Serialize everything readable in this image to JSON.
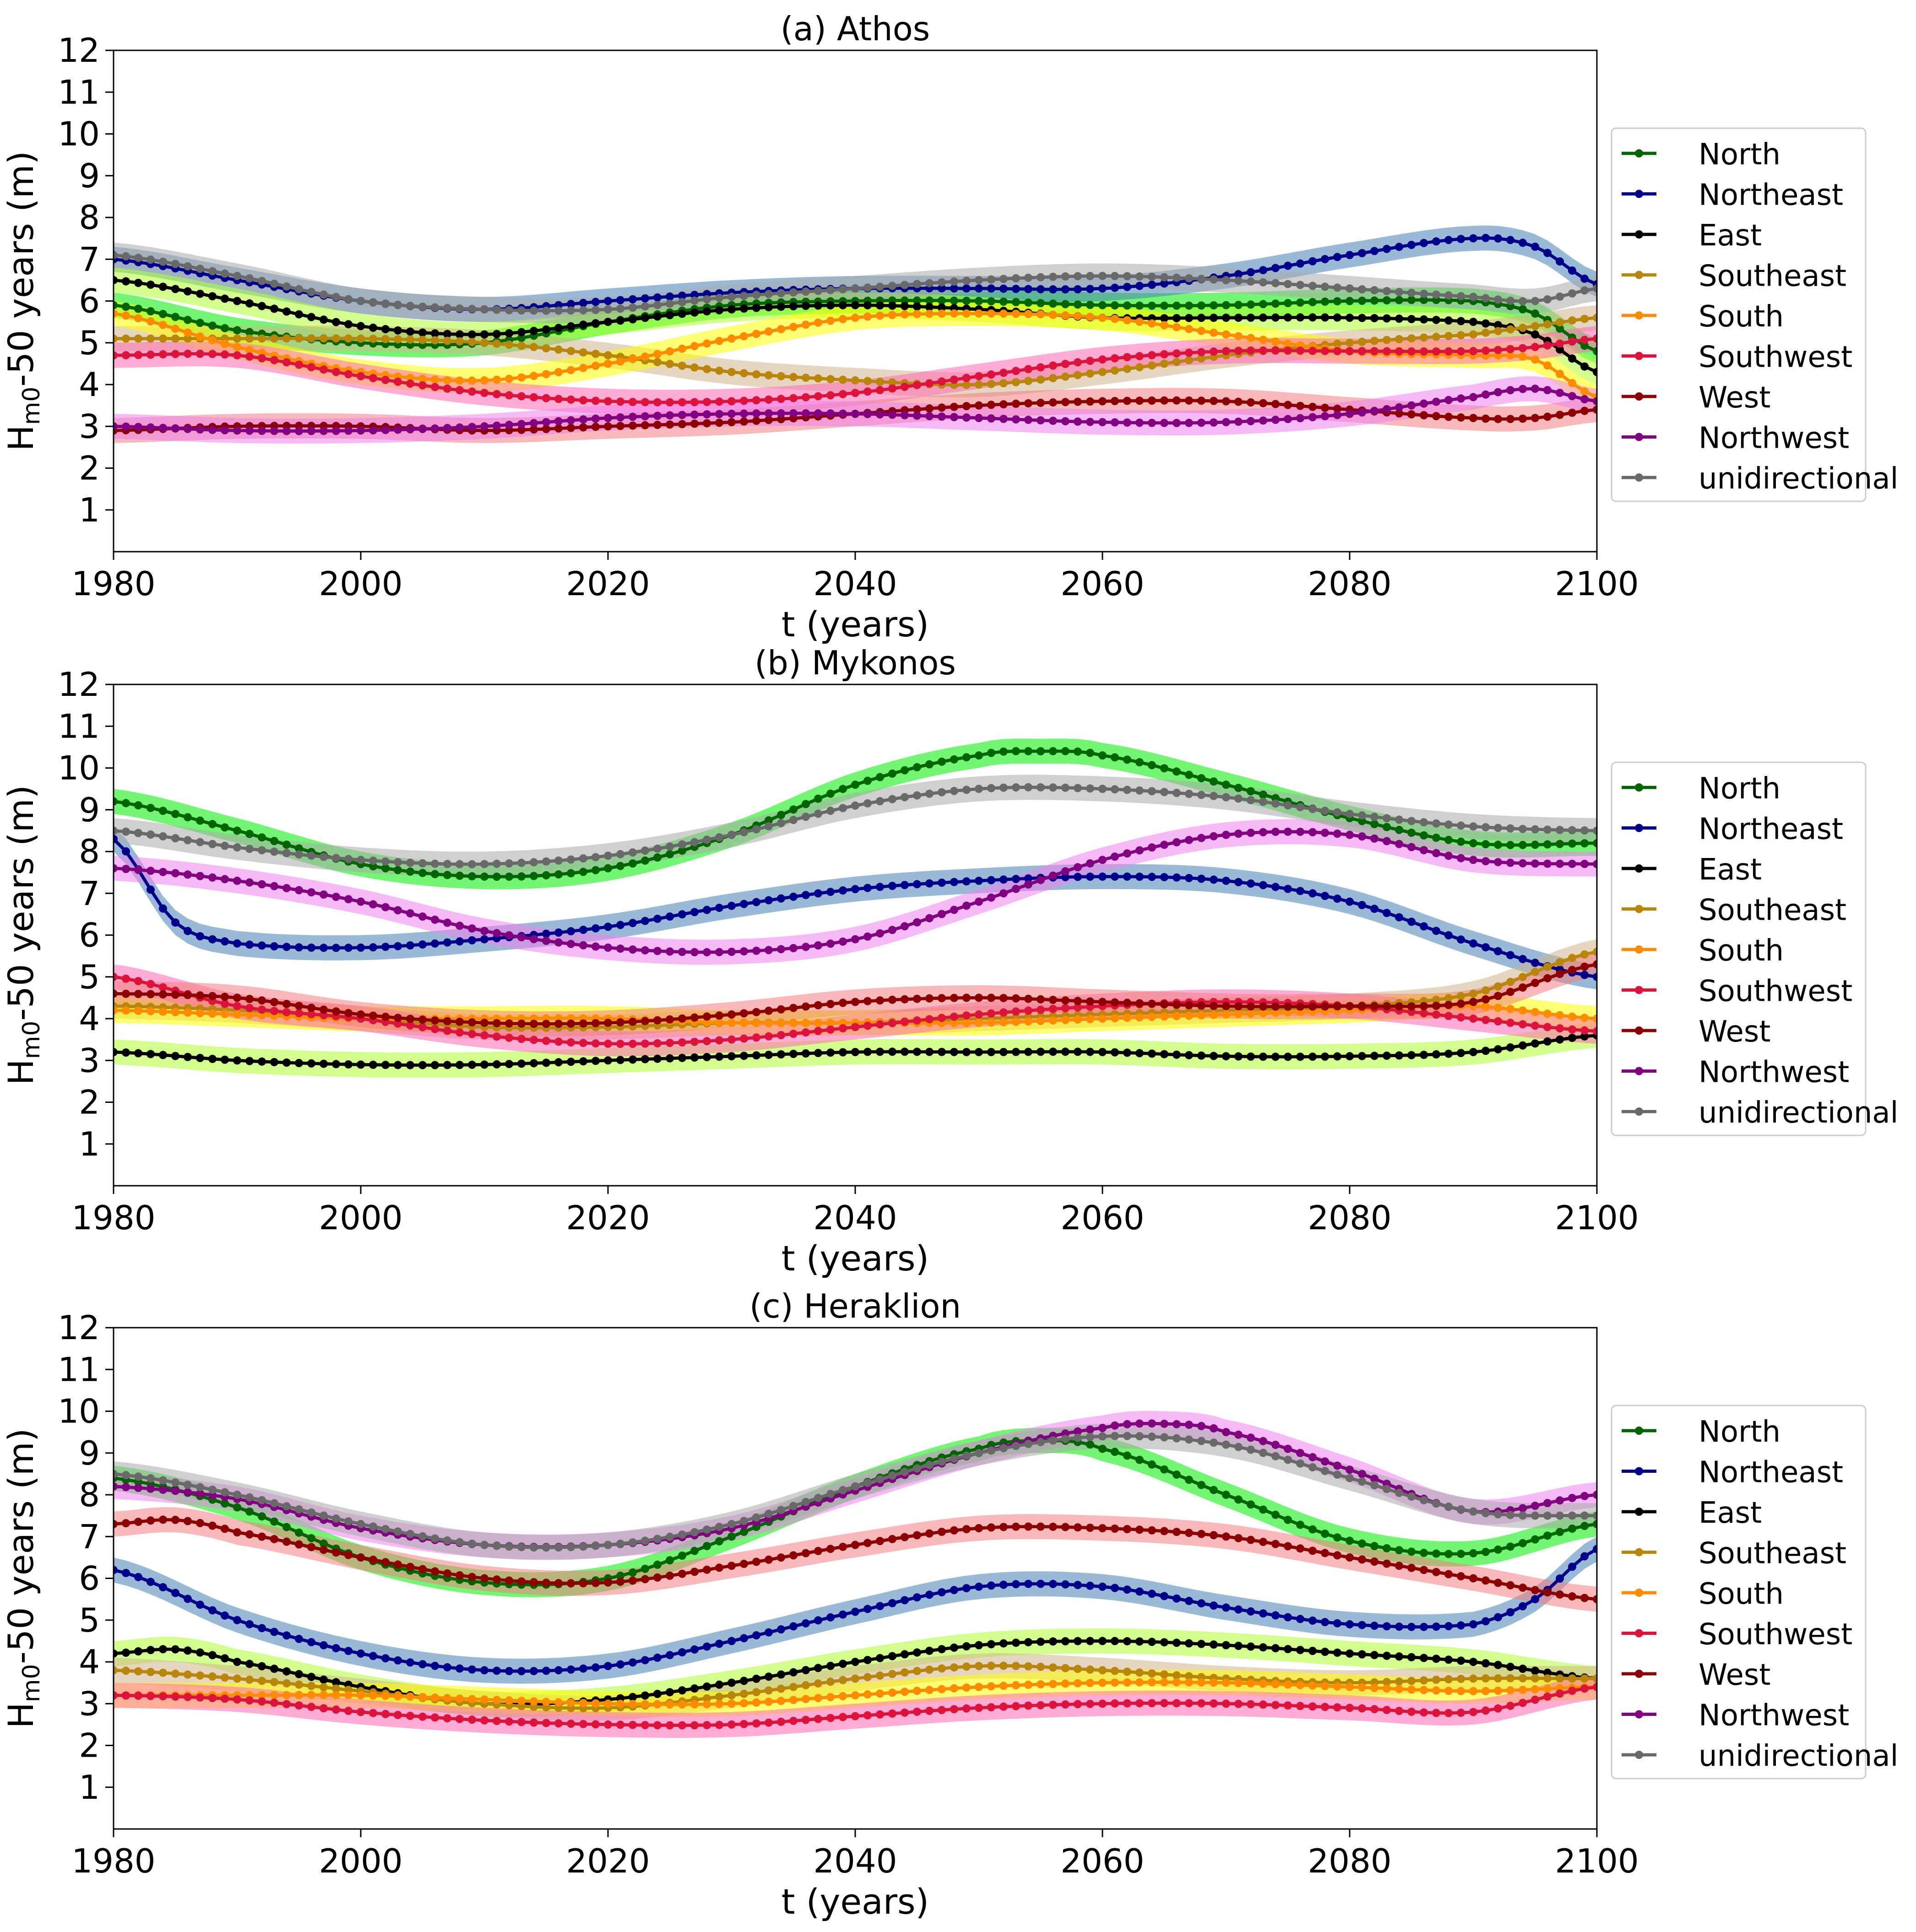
{
  "figure": {
    "description_free": true
  },
  "common": {
    "xlabel": "t (years)",
    "ylabel_main": "H",
    "ylabel_sub": "m0",
    "ylabel_rest": "-50 years (m)",
    "xlim": [
      1980,
      2100
    ],
    "ylim": [
      0,
      12
    ],
    "xticks": [
      1980,
      2000,
      2020,
      2040,
      2060,
      2080,
      2100
    ],
    "yticks": [
      1,
      2,
      3,
      4,
      5,
      6,
      7,
      8,
      9,
      10,
      11,
      12
    ],
    "legend_position": "right"
  },
  "colors": {
    "North": "#006400",
    "Northeast": "#00008b",
    "East": "#000000",
    "Southeast": "#b8860b",
    "South": "#ff8c00",
    "Southwest": "#dc143c",
    "West": "#8b0000",
    "Northwest": "#800080",
    "unidirectional": "#696969"
  },
  "band_colors": {
    "North": "#00ee00",
    "Northeast": "#4682b4",
    "East": "#adff2f",
    "Southeast": "#d2b48c",
    "South": "#ffff00",
    "Southwest": "#ff69b4",
    "West": "#f08080",
    "Northwest": "#ee82ee",
    "unidirectional": "#a9a9a9"
  },
  "chart_data": [
    {
      "type": "line",
      "title": "(a) Athos",
      "xlabel": "t (years)",
      "ylabel": "Hm0-50 years (m)",
      "xlim": [
        1980,
        2100
      ],
      "ylim": [
        0,
        12
      ],
      "band_halfwidth": 0.3,
      "legend": [
        "North",
        "Northeast",
        "East",
        "Southeast",
        "South",
        "Southwest",
        "West",
        "Northwest",
        "unidirectional"
      ],
      "series": [
        {
          "name": "North",
          "x": [
            1980,
            1990,
            2000,
            2010,
            2020,
            2030,
            2040,
            2050,
            2060,
            2070,
            2080,
            2090,
            2095,
            2100
          ],
          "values": [
            5.9,
            5.3,
            5.0,
            5.0,
            5.5,
            5.9,
            6.0,
            6.0,
            5.9,
            5.9,
            6.0,
            6.0,
            5.7,
            4.8
          ]
        },
        {
          "name": "Northeast",
          "x": [
            1980,
            1990,
            2000,
            2010,
            2020,
            2030,
            2040,
            2050,
            2060,
            2070,
            2080,
            2090,
            2095,
            2100
          ],
          "values": [
            7.0,
            6.5,
            6.0,
            5.8,
            6.0,
            6.2,
            6.3,
            6.3,
            6.3,
            6.6,
            7.1,
            7.5,
            7.3,
            6.4
          ]
        },
        {
          "name": "East",
          "x": [
            1980,
            1990,
            2000,
            2010,
            2020,
            2030,
            2040,
            2050,
            2060,
            2070,
            2080,
            2090,
            2095,
            2100
          ],
          "values": [
            6.5,
            6.0,
            5.4,
            5.2,
            5.5,
            5.8,
            5.9,
            5.8,
            5.6,
            5.6,
            5.6,
            5.5,
            5.2,
            4.3
          ]
        },
        {
          "name": "Southeast",
          "x": [
            1980,
            1990,
            2000,
            2010,
            2020,
            2030,
            2040,
            2050,
            2060,
            2070,
            2080,
            2090,
            2095,
            2100
          ],
          "values": [
            5.1,
            5.1,
            5.1,
            5.0,
            4.7,
            4.3,
            4.1,
            4.0,
            4.3,
            4.7,
            5.0,
            5.2,
            5.4,
            5.6
          ]
        },
        {
          "name": "South",
          "x": [
            1980,
            1990,
            2000,
            2010,
            2020,
            2030,
            2040,
            2050,
            2060,
            2070,
            2080,
            2090,
            2095,
            2100
          ],
          "values": [
            5.7,
            4.9,
            4.3,
            4.1,
            4.5,
            5.1,
            5.6,
            5.7,
            5.6,
            5.2,
            4.8,
            4.7,
            4.6,
            3.7
          ]
        },
        {
          "name": "Southwest",
          "x": [
            1980,
            1990,
            2000,
            2010,
            2020,
            2030,
            2040,
            2050,
            2060,
            2070,
            2080,
            2090,
            2095,
            2100
          ],
          "values": [
            4.7,
            4.7,
            4.2,
            3.8,
            3.6,
            3.6,
            3.8,
            4.2,
            4.6,
            4.8,
            4.8,
            4.8,
            4.9,
            5.1
          ]
        },
        {
          "name": "West",
          "x": [
            1980,
            1990,
            2000,
            2010,
            2020,
            2030,
            2040,
            2050,
            2060,
            2070,
            2080,
            2090,
            2095,
            2100
          ],
          "values": [
            2.9,
            3.0,
            3.0,
            2.9,
            3.0,
            3.1,
            3.3,
            3.5,
            3.6,
            3.6,
            3.4,
            3.2,
            3.2,
            3.4
          ]
        },
        {
          "name": "Northwest",
          "x": [
            1980,
            1990,
            2000,
            2010,
            2020,
            2030,
            2040,
            2050,
            2060,
            2070,
            2080,
            2090,
            2095,
            2100
          ],
          "values": [
            3.0,
            2.9,
            2.9,
            3.0,
            3.2,
            3.3,
            3.3,
            3.2,
            3.1,
            3.1,
            3.3,
            3.7,
            3.9,
            3.6
          ]
        },
        {
          "name": "unidirectional",
          "x": [
            1980,
            1990,
            2000,
            2010,
            2020,
            2030,
            2040,
            2050,
            2060,
            2070,
            2080,
            2090,
            2095,
            2100
          ],
          "values": [
            7.1,
            6.6,
            6.0,
            5.8,
            5.8,
            6.1,
            6.3,
            6.5,
            6.6,
            6.5,
            6.3,
            6.1,
            6.0,
            6.3
          ]
        }
      ]
    },
    {
      "type": "line",
      "title": "(b) Mykonos",
      "xlabel": "t (years)",
      "ylabel": "Hm0-50 years (m)",
      "xlim": [
        1980,
        2100
      ],
      "ylim": [
        0,
        12
      ],
      "band_halfwidth": 0.3,
      "legend": [
        "North",
        "Northeast",
        "East",
        "Southeast",
        "South",
        "Southwest",
        "West",
        "Northwest",
        "unidirectional"
      ],
      "series": [
        {
          "name": "North",
          "x": [
            1980,
            1990,
            2000,
            2010,
            2020,
            2030,
            2040,
            2050,
            2055,
            2060,
            2070,
            2080,
            2090,
            2100
          ],
          "values": [
            9.2,
            8.5,
            7.7,
            7.4,
            7.6,
            8.4,
            9.6,
            10.3,
            10.4,
            10.3,
            9.6,
            8.8,
            8.2,
            8.2
          ]
        },
        {
          "name": "Northeast",
          "x": [
            1980,
            1985,
            1990,
            2000,
            2010,
            2020,
            2030,
            2040,
            2050,
            2060,
            2070,
            2080,
            2090,
            2100
          ],
          "values": [
            8.3,
            6.3,
            5.8,
            5.7,
            5.9,
            6.2,
            6.7,
            7.1,
            7.3,
            7.4,
            7.3,
            6.8,
            5.8,
            5.0
          ]
        },
        {
          "name": "East",
          "x": [
            1980,
            1990,
            2000,
            2010,
            2020,
            2030,
            2040,
            2050,
            2060,
            2070,
            2080,
            2090,
            2100
          ],
          "values": [
            3.2,
            3.0,
            2.9,
            2.9,
            3.0,
            3.1,
            3.2,
            3.2,
            3.2,
            3.1,
            3.1,
            3.2,
            3.6
          ]
        },
        {
          "name": "Southeast",
          "x": [
            1980,
            1990,
            2000,
            2010,
            2020,
            2030,
            2040,
            2050,
            2060,
            2070,
            2080,
            2090,
            2100
          ],
          "values": [
            4.3,
            4.2,
            4.0,
            3.8,
            3.8,
            3.9,
            3.9,
            4.0,
            4.1,
            4.2,
            4.3,
            4.6,
            5.6
          ]
        },
        {
          "name": "South",
          "x": [
            1980,
            1990,
            2000,
            2010,
            2020,
            2030,
            2040,
            2050,
            2060,
            2070,
            2080,
            2090,
            2100
          ],
          "values": [
            4.2,
            4.1,
            4.0,
            4.0,
            4.0,
            3.9,
            3.9,
            3.9,
            4.0,
            4.1,
            4.2,
            4.3,
            4.0
          ]
        },
        {
          "name": "Southwest",
          "x": [
            1980,
            1990,
            2000,
            2010,
            2020,
            2030,
            2040,
            2050,
            2060,
            2070,
            2080,
            2090,
            2100
          ],
          "values": [
            5.0,
            4.3,
            4.0,
            3.6,
            3.4,
            3.5,
            3.8,
            4.1,
            4.3,
            4.4,
            4.3,
            4.0,
            3.7
          ]
        },
        {
          "name": "West",
          "x": [
            1980,
            1990,
            2000,
            2010,
            2020,
            2030,
            2040,
            2050,
            2060,
            2070,
            2080,
            2090,
            2100
          ],
          "values": [
            4.6,
            4.5,
            4.1,
            3.9,
            3.9,
            4.1,
            4.4,
            4.5,
            4.4,
            4.3,
            4.3,
            4.4,
            5.3
          ]
        },
        {
          "name": "Northwest",
          "x": [
            1980,
            1990,
            2000,
            2010,
            2020,
            2030,
            2040,
            2050,
            2060,
            2070,
            2080,
            2090,
            2100
          ],
          "values": [
            7.6,
            7.3,
            6.8,
            6.1,
            5.7,
            5.6,
            5.9,
            6.8,
            7.8,
            8.4,
            8.4,
            7.8,
            7.7
          ]
        },
        {
          "name": "unidirectional",
          "x": [
            1980,
            1990,
            2000,
            2010,
            2020,
            2030,
            2040,
            2050,
            2060,
            2070,
            2080,
            2090,
            2100
          ],
          "values": [
            8.5,
            8.1,
            7.8,
            7.7,
            7.9,
            8.4,
            9.1,
            9.5,
            9.5,
            9.3,
            8.9,
            8.6,
            8.5
          ]
        }
      ]
    },
    {
      "type": "line",
      "title": "(c) Heraklion",
      "xlabel": "t (years)",
      "ylabel": "Hm0-50 years (m)",
      "xlim": [
        1980,
        2100
      ],
      "ylim": [
        0,
        12
      ],
      "band_halfwidth": 0.3,
      "legend": [
        "North",
        "Northeast",
        "East",
        "Southeast",
        "South",
        "Southwest",
        "West",
        "Northwest",
        "unidirectional"
      ],
      "series": [
        {
          "name": "North",
          "x": [
            1980,
            1990,
            2000,
            2010,
            2020,
            2030,
            2040,
            2050,
            2055,
            2060,
            2070,
            2080,
            2090,
            2100
          ],
          "values": [
            8.4,
            7.7,
            6.5,
            5.9,
            6.0,
            7.0,
            8.2,
            9.1,
            9.3,
            9.1,
            8.0,
            6.9,
            6.6,
            7.3
          ]
        },
        {
          "name": "Northeast",
          "x": [
            1980,
            1990,
            2000,
            2010,
            2020,
            2030,
            2040,
            2050,
            2060,
            2070,
            2080,
            2090,
            2095,
            2100
          ],
          "values": [
            6.2,
            5.0,
            4.2,
            3.8,
            3.9,
            4.5,
            5.2,
            5.8,
            5.8,
            5.3,
            4.9,
            4.9,
            5.5,
            6.7
          ]
        },
        {
          "name": "East",
          "x": [
            1980,
            1985,
            1990,
            2000,
            2010,
            2020,
            2030,
            2040,
            2050,
            2060,
            2070,
            2080,
            2090,
            2100
          ],
          "values": [
            4.2,
            4.3,
            4.0,
            3.4,
            3.0,
            3.1,
            3.5,
            4.0,
            4.4,
            4.5,
            4.4,
            4.2,
            4.0,
            3.6
          ]
        },
        {
          "name": "Southeast",
          "x": [
            1980,
            1990,
            2000,
            2010,
            2020,
            2030,
            2040,
            2050,
            2060,
            2070,
            2080,
            2090,
            2100
          ],
          "values": [
            3.8,
            3.6,
            3.3,
            3.0,
            2.9,
            3.2,
            3.6,
            3.9,
            3.8,
            3.6,
            3.5,
            3.6,
            3.6
          ]
        },
        {
          "name": "South",
          "x": [
            1980,
            1990,
            2000,
            2010,
            2020,
            2030,
            2040,
            2050,
            2060,
            2070,
            2080,
            2090,
            2100
          ],
          "values": [
            3.2,
            3.2,
            3.2,
            3.1,
            3.0,
            3.0,
            3.2,
            3.4,
            3.5,
            3.5,
            3.4,
            3.3,
            3.4
          ]
        },
        {
          "name": "Southwest",
          "x": [
            1980,
            1990,
            2000,
            2010,
            2020,
            2030,
            2040,
            2050,
            2060,
            2070,
            2080,
            2090,
            2100
          ],
          "values": [
            3.2,
            3.1,
            2.8,
            2.6,
            2.5,
            2.5,
            2.7,
            2.9,
            3.0,
            3.0,
            2.9,
            2.8,
            3.4
          ]
        },
        {
          "name": "West",
          "x": [
            1980,
            1985,
            1990,
            2000,
            2010,
            2020,
            2030,
            2040,
            2050,
            2060,
            2070,
            2080,
            2090,
            2100
          ],
          "values": [
            7.3,
            7.4,
            7.1,
            6.5,
            6.0,
            5.9,
            6.3,
            6.8,
            7.2,
            7.2,
            7.0,
            6.5,
            6.0,
            5.5
          ]
        },
        {
          "name": "Northwest",
          "x": [
            1980,
            1990,
            2000,
            2010,
            2020,
            2030,
            2040,
            2050,
            2060,
            2065,
            2070,
            2080,
            2090,
            2100
          ],
          "values": [
            8.2,
            7.9,
            7.2,
            6.8,
            6.8,
            7.2,
            8.1,
            9.0,
            9.6,
            9.7,
            9.5,
            8.6,
            7.6,
            8.0
          ]
        },
        {
          "name": "unidirectional",
          "x": [
            1980,
            1990,
            2000,
            2010,
            2020,
            2030,
            2040,
            2050,
            2060,
            2070,
            2080,
            2090,
            2100
          ],
          "values": [
            8.5,
            8.0,
            7.3,
            6.8,
            6.8,
            7.3,
            8.2,
            9.0,
            9.4,
            9.2,
            8.4,
            7.6,
            7.5
          ]
        }
      ]
    }
  ]
}
